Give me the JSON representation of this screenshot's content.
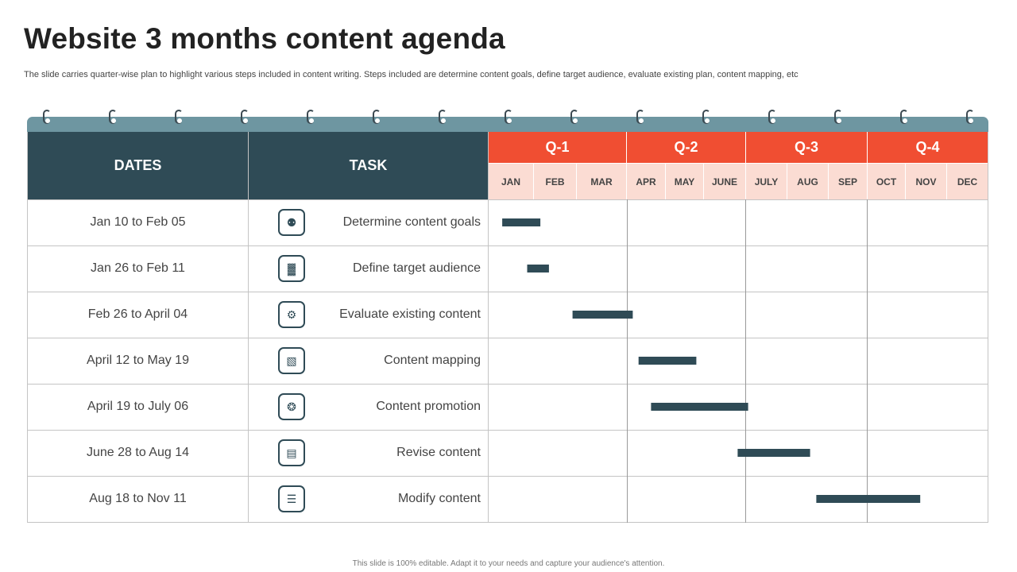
{
  "title": "Website 3 months content agenda",
  "subtitle": "The slide carries quarter-wise plan to highlight various steps included in content writing. Steps included are determine content goals, define target audience, evaluate existing plan, content mapping, etc",
  "footer": "This slide is 100% editable. Adapt it to your needs and capture your audience's attention.",
  "header": {
    "dates": "DATES",
    "task": "TASK"
  },
  "quarters": [
    {
      "label": "Q-1",
      "months": [
        "JAN",
        "FEB",
        "MAR"
      ]
    },
    {
      "label": "Q-2",
      "months": [
        "APR",
        "MAY",
        "JUNE"
      ]
    },
    {
      "label": "Q-3",
      "months": [
        "JULY",
        "AUG",
        "SEP"
      ]
    },
    {
      "label": "Q-4",
      "months": [
        "OCT",
        "NOV",
        "DEC"
      ]
    }
  ],
  "rows": [
    {
      "dates": "Jan 10 to Feb 05",
      "task": "Determine content goals",
      "icon": "target-group-icon"
    },
    {
      "dates": "Jan 26 to Feb 11",
      "task": "Define target audience",
      "icon": "audience-chart-icon"
    },
    {
      "dates": "Feb 26 to April 04",
      "task": "Evaluate existing content",
      "icon": "gears-icon"
    },
    {
      "dates": "April 12 to May 19",
      "task": "Content mapping",
      "icon": "map-pin-icon"
    },
    {
      "dates": "April 19 to July 06",
      "task": "Content promotion",
      "icon": "megaphone-icon"
    },
    {
      "dates": "June 28 to Aug 14",
      "task": "Revise content",
      "icon": "document-edit-icon"
    },
    {
      "dates": "Aug 18 to Nov 11",
      "task": "Modify content",
      "icon": "clipboard-icon"
    }
  ],
  "colors": {
    "header_dark": "#2f4b56",
    "quarter_header": "#f04e32",
    "month_header": "#fbdcd3",
    "bar": "#2f4b56",
    "binding": "#6e96a1"
  },
  "chart_data": {
    "type": "gantt",
    "x_unit": "month",
    "xlim": [
      0,
      12
    ],
    "tasks": [
      {
        "name": "Determine content goals",
        "start": "Jan 10",
        "end": "Feb 05",
        "start_month": 0.3,
        "end_month": 1.15
      },
      {
        "name": "Define target audience",
        "start": "Jan 26",
        "end": "Feb 11",
        "start_month": 0.85,
        "end_month": 1.35
      },
      {
        "name": "Evaluate existing content",
        "start": "Feb 26",
        "end": "April 04",
        "start_month": 1.9,
        "end_month": 3.15
      },
      {
        "name": "Content mapping",
        "start": "April 12",
        "end": "May 19",
        "start_month": 3.3,
        "end_month": 4.8
      },
      {
        "name": "Content promotion",
        "start": "April 19",
        "end": "July 06",
        "start_month": 3.62,
        "end_month": 6.05
      },
      {
        "name": "Revise content",
        "start": "June 28",
        "end": "Aug 14",
        "start_month": 5.8,
        "end_month": 7.55
      },
      {
        "name": "Modify content",
        "start": "Aug 18",
        "end": "Nov 11",
        "start_month": 7.7,
        "end_month": 10.35
      }
    ]
  }
}
